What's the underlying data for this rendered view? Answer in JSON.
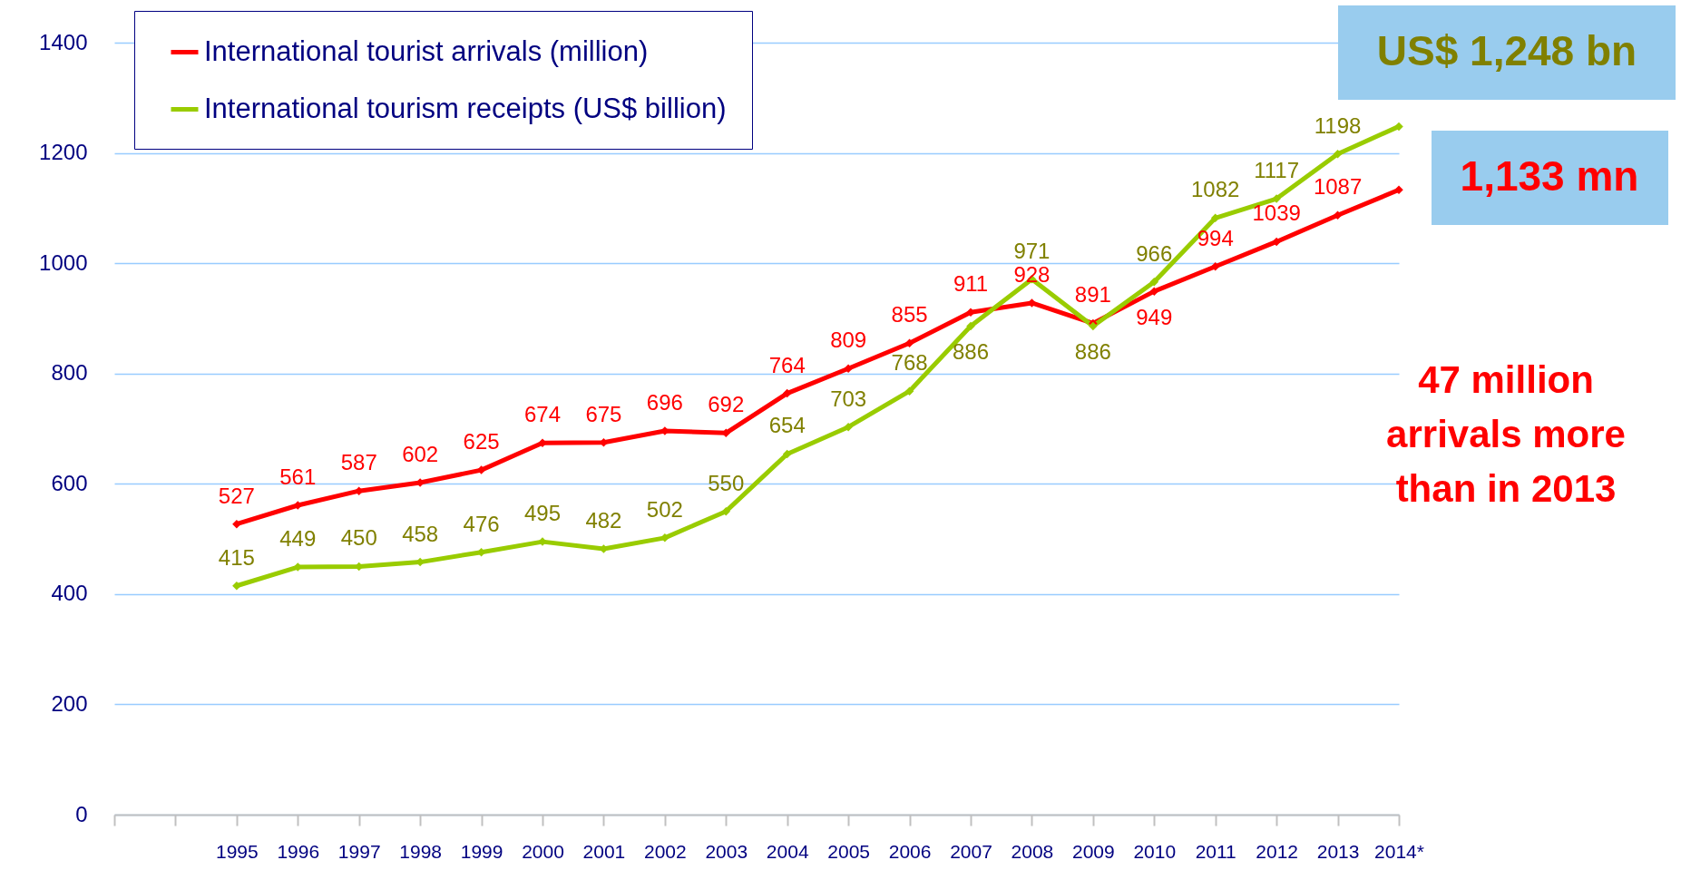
{
  "chart_data": {
    "type": "line",
    "categories": [
      null,
      null,
      "1995",
      "1996",
      "1997",
      "1998",
      "1999",
      "2000",
      "2001",
      "2002",
      "2003",
      "2004",
      "2005",
      "2006",
      "2007",
      "2008",
      "2009",
      "2010",
      "2011",
      "2012",
      "2013",
      "2014*"
    ],
    "series": [
      {
        "name": "International tourist arrivals (million)",
        "color": "#ff0000",
        "values": [
          null,
          null,
          527,
          561,
          587,
          602,
          625,
          674,
          675,
          696,
          692,
          764,
          809,
          855,
          911,
          928,
          891,
          949,
          994,
          1039,
          1087,
          1133
        ],
        "value_labels": [
          null,
          null,
          "527",
          "561",
          "587",
          "602",
          "625",
          "674",
          "675",
          "696",
          "692",
          "764",
          "809",
          "855",
          "911",
          "928",
          "891",
          "949",
          "994",
          "1039",
          "1087",
          null
        ]
      },
      {
        "name": "International tourism receipts (US$ billion)",
        "color": "#99cc00",
        "values": [
          null,
          null,
          415,
          449,
          450,
          458,
          476,
          495,
          482,
          502,
          550,
          654,
          703,
          768,
          886,
          971,
          886,
          966,
          1082,
          1117,
          1198,
          1248
        ],
        "value_labels": [
          null,
          null,
          "415",
          "449",
          "450",
          "458",
          "476",
          "495",
          "482",
          "502",
          "550",
          "654",
          "703",
          "768",
          "886",
          "971",
          "886",
          "966",
          "1082",
          "1117",
          "1198",
          null
        ]
      }
    ],
    "ylim": [
      0,
      1400
    ],
    "yticks": [
      0,
      200,
      400,
      600,
      800,
      1000,
      1200,
      1400
    ],
    "grid": "y",
    "legend": "top left",
    "marker": "diamond",
    "annotations": [
      "US$  1,248 bn",
      "1,133 mn",
      "47 million arrivals more than in 2013"
    ]
  }
}
